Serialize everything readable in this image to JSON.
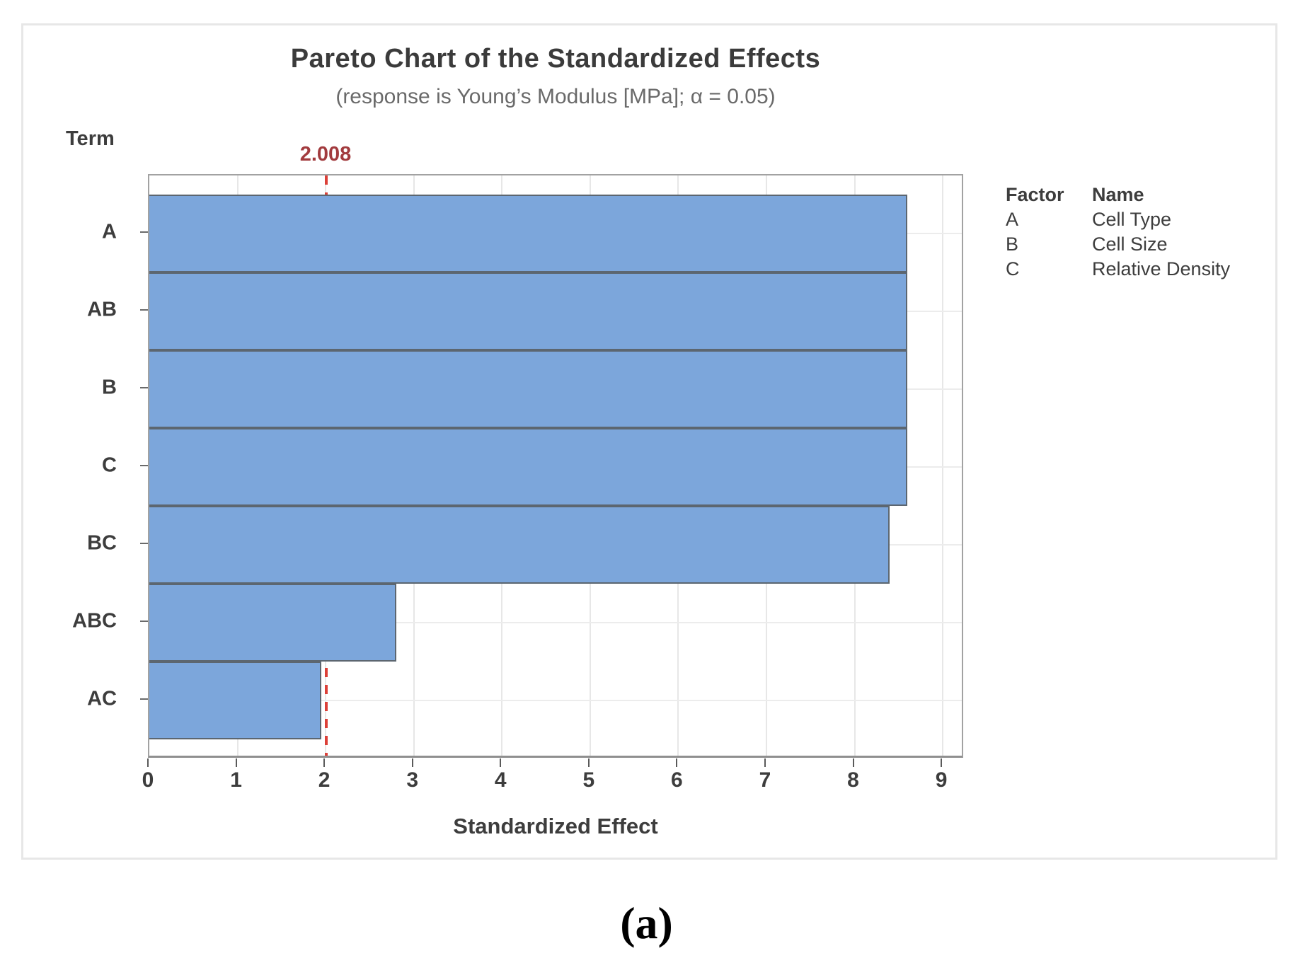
{
  "title": "Pareto Chart of the Standardized Effects",
  "subtitle": "(response is Young’s Modulus [MPa]; α = 0.05)",
  "caption": "(a)",
  "y_axis_title": "Term",
  "x_axis_title": "Standardized Effect",
  "reference_line": {
    "label": "2.008",
    "value": 2.008,
    "line_color": "#dc4038",
    "label_color": "#a23b3e"
  },
  "legend": {
    "factor_header": "Factor",
    "name_header": "Name",
    "rows": [
      {
        "factor": "A",
        "name": "Cell Type"
      },
      {
        "factor": "B",
        "name": "Cell Size"
      },
      {
        "factor": "C",
        "name": "Relative Density"
      }
    ]
  },
  "chart_data": {
    "type": "bar",
    "orientation": "horizontal",
    "title": "Pareto Chart of the Standardized Effects",
    "subtitle": "(response is Young’s Modulus [MPa]; α = 0.05)",
    "xlabel": "Standardized Effect",
    "ylabel": "Term",
    "categories": [
      "A",
      "AB",
      "B",
      "C",
      "BC",
      "ABC",
      "AC"
    ],
    "values": [
      8.6,
      8.6,
      8.6,
      8.6,
      8.4,
      2.8,
      1.95
    ],
    "x_ticks": [
      0,
      1,
      2,
      3,
      4,
      5,
      6,
      7,
      8,
      9
    ],
    "xlim": [
      0,
      9.216
    ],
    "reference_value": 2.008,
    "grid": true,
    "legend_position": "right",
    "bar_color": "#7ca6db",
    "bar_border_color": "#5c6670"
  }
}
